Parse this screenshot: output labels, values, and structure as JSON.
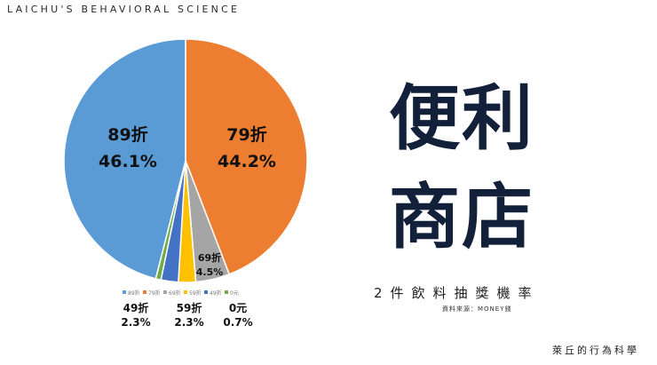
{
  "brand": "LAICHU'S BEHAVIORAL SCIENCE",
  "title_line1": "便利",
  "title_line2": "商店",
  "subtitle": "2件飲料抽獎機率",
  "source": "資料來源：MONEY錢",
  "footer": "萊丘的行為科學",
  "chart_data": {
    "type": "pie",
    "title": "",
    "categories": [
      "79折",
      "69折",
      "59折",
      "49折",
      "0元",
      "89折"
    ],
    "values": [
      44.2,
      4.5,
      2.3,
      2.3,
      0.7,
      46.1
    ],
    "value_labels": [
      "44.2%",
      "4.5%",
      "2.3%",
      "2.3%",
      "0.7%",
      "46.1%"
    ],
    "colors": [
      "#ED7D31",
      "#A5A5A5",
      "#FFC000",
      "#4472C4",
      "#70AD47",
      "#5B9BD5"
    ],
    "legend_order": [
      "89折",
      "79折",
      "69折",
      "59折",
      "49折",
      "0元"
    ],
    "legend_position": "bottom"
  }
}
